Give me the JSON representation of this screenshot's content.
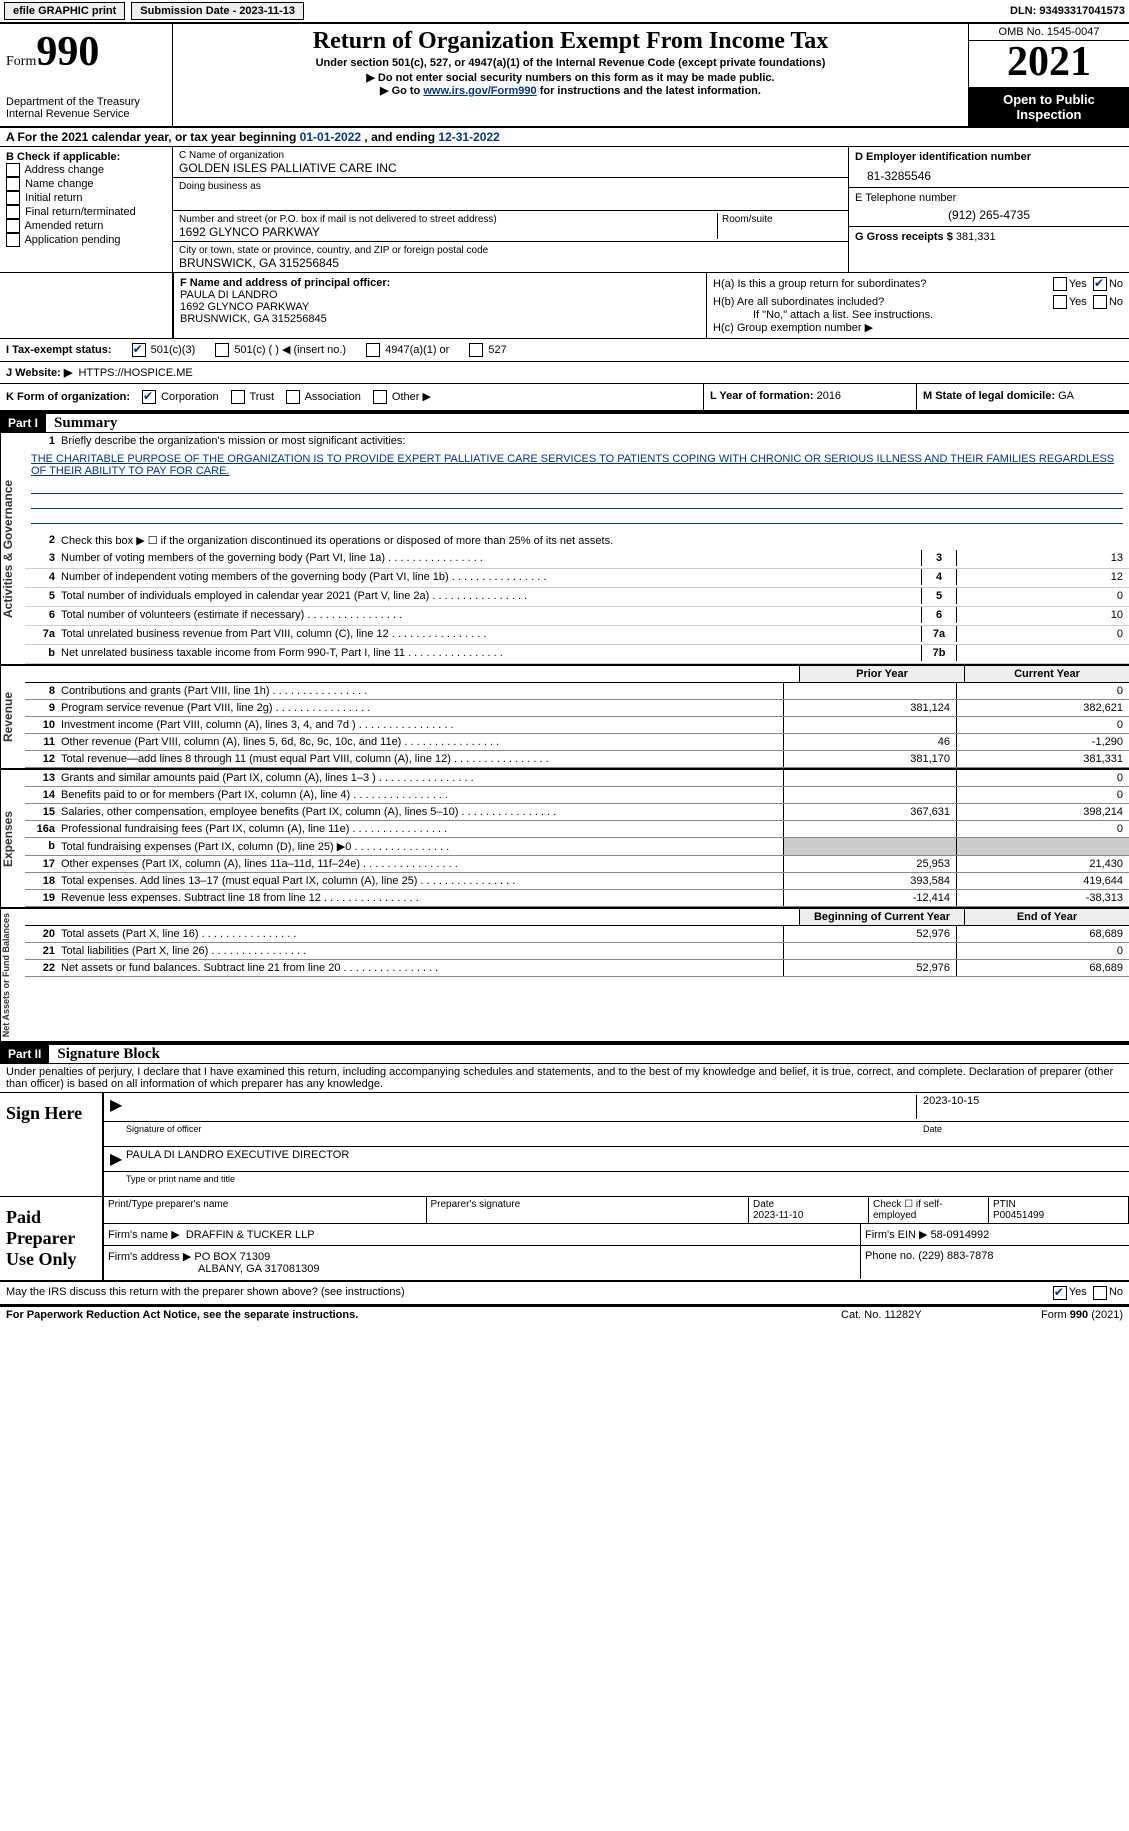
{
  "topbar": {
    "efile": "efile GRAPHIC print",
    "submission_label": "Submission Date - 2023-11-13",
    "dln_label": "DLN: 93493317041573"
  },
  "header": {
    "form_label": "Form",
    "form_number": "990",
    "dept": "Department of the Treasury",
    "irs": "Internal Revenue Service",
    "title": "Return of Organization Exempt From Income Tax",
    "subtitle": "Under section 501(c), 527, or 4947(a)(1) of the Internal Revenue Code (except private foundations)",
    "note1": "▶ Do not enter social security numbers on this form as it may be made public.",
    "note2_pre": "▶ Go to ",
    "note2_link": "www.irs.gov/Form990",
    "note2_post": " for instructions and the latest information.",
    "omb": "OMB No. 1545-0047",
    "year": "2021",
    "inspect": "Open to Public Inspection"
  },
  "period": {
    "label_a": "A For the 2021 calendar year, or tax year beginning ",
    "begin": "01-01-2022",
    "mid": " , and ending ",
    "end": "12-31-2022"
  },
  "section_b": {
    "label": "B Check if applicable:",
    "opts": [
      "Address change",
      "Name change",
      "Initial return",
      "Final return/terminated",
      "Amended return",
      "Application pending"
    ]
  },
  "section_c": {
    "name_label": "C Name of organization",
    "name": "GOLDEN ISLES PALLIATIVE CARE INC",
    "dba_label": "Doing business as",
    "addr_label": "Number and street (or P.O. box if mail is not delivered to street address)",
    "room_label": "Room/suite",
    "addr": "1692 GLYNCO PARKWAY",
    "city_label": "City or town, state or province, country, and ZIP or foreign postal code",
    "city": "BRUNSWICK, GA  315256845"
  },
  "section_d": {
    "label": "D Employer identification number",
    "value": "81-3285546"
  },
  "section_e": {
    "label": "E Telephone number",
    "value": "(912) 265-4735"
  },
  "section_g": {
    "label": "G Gross receipts $",
    "value": "381,331"
  },
  "section_f": {
    "label": "F Name and address of principal officer:",
    "name": "PAULA DI LANDRO",
    "addr": "1692 GLYNCO PARKWAY",
    "city": "BRUSNWICK, GA  315256845"
  },
  "section_h": {
    "ha_label": "H(a)  Is this a group return for subordinates?",
    "hb_label": "H(b)  Are all subordinates included?",
    "hb_note": "If \"No,\" attach a list. See instructions.",
    "hc_label": "H(c)  Group exemption number ▶",
    "yes": "Yes",
    "no": "No"
  },
  "section_i": {
    "label": "I  Tax-exempt status:",
    "opts": [
      "501(c)(3)",
      "501(c) (  ) ◀ (insert no.)",
      "4947(a)(1) or",
      "527"
    ]
  },
  "section_j": {
    "label": "J  Website: ▶",
    "value": "HTTPS://HOSPICE.ME"
  },
  "section_k": {
    "label": "K Form of organization:",
    "opts": [
      "Corporation",
      "Trust",
      "Association",
      "Other ▶"
    ]
  },
  "section_l": {
    "label": "L Year of formation:",
    "value": "2016"
  },
  "section_m": {
    "label": "M State of legal domicile:",
    "value": "GA"
  },
  "part1": {
    "header": "Part I",
    "title": "Summary",
    "line1_label": "Briefly describe the organization's mission or most significant activities:",
    "mission": "THE CHARITABLE PURPOSE OF THE ORGANIZATION IS TO PROVIDE EXPERT PALLIATIVE CARE SERVICES TO PATIENTS COPING WITH CHRONIC OR SERIOUS ILLNESS AND THEIR FAMILIES REGARDLESS OF THEIR ABILITY TO PAY FOR CARE.",
    "line2": "Check this box ▶ ☐ if the organization discontinued its operations or disposed of more than 25% of its net assets.",
    "lines_numbox": [
      {
        "n": "3",
        "t": "Number of voting members of the governing body (Part VI, line 1a)",
        "box": "3",
        "v": "13"
      },
      {
        "n": "4",
        "t": "Number of independent voting members of the governing body (Part VI, line 1b)",
        "box": "4",
        "v": "12"
      },
      {
        "n": "5",
        "t": "Total number of individuals employed in calendar year 2021 (Part V, line 2a)",
        "box": "5",
        "v": "0"
      },
      {
        "n": "6",
        "t": "Total number of volunteers (estimate if necessary)",
        "box": "6",
        "v": "10"
      },
      {
        "n": "7a",
        "t": "Total unrelated business revenue from Part VIII, column (C), line 12",
        "box": "7a",
        "v": "0"
      },
      {
        "n": "b",
        "t": "Net unrelated business taxable income from Form 990-T, Part I, line 11",
        "box": "7b",
        "v": ""
      }
    ],
    "col_prior": "Prior Year",
    "col_current": "Current Year",
    "revenue_lines": [
      {
        "n": "8",
        "t": "Contributions and grants (Part VIII, line 1h)",
        "p": "",
        "c": "0"
      },
      {
        "n": "9",
        "t": "Program service revenue (Part VIII, line 2g)",
        "p": "381,124",
        "c": "382,621"
      },
      {
        "n": "10",
        "t": "Investment income (Part VIII, column (A), lines 3, 4, and 7d )",
        "p": "",
        "c": "0"
      },
      {
        "n": "11",
        "t": "Other revenue (Part VIII, column (A), lines 5, 6d, 8c, 9c, 10c, and 11e)",
        "p": "46",
        "c": "-1,290"
      },
      {
        "n": "12",
        "t": "Total revenue—add lines 8 through 11 (must equal Part VIII, column (A), line 12)",
        "p": "381,170",
        "c": "381,331"
      }
    ],
    "expense_lines": [
      {
        "n": "13",
        "t": "Grants and similar amounts paid (Part IX, column (A), lines 1–3 )",
        "p": "",
        "c": "0"
      },
      {
        "n": "14",
        "t": "Benefits paid to or for members (Part IX, column (A), line 4)",
        "p": "",
        "c": "0"
      },
      {
        "n": "15",
        "t": "Salaries, other compensation, employee benefits (Part IX, column (A), lines 5–10)",
        "p": "367,631",
        "c": "398,214"
      },
      {
        "n": "16a",
        "t": "Professional fundraising fees (Part IX, column (A), line 11e)",
        "p": "",
        "c": "0"
      },
      {
        "n": "b",
        "t": "Total fundraising expenses (Part IX, column (D), line 25) ▶0",
        "p": "grey",
        "c": "grey"
      },
      {
        "n": "17",
        "t": "Other expenses (Part IX, column (A), lines 11a–11d, 11f–24e)",
        "p": "25,953",
        "c": "21,430"
      },
      {
        "n": "18",
        "t": "Total expenses. Add lines 13–17 (must equal Part IX, column (A), line 25)",
        "p": "393,584",
        "c": "419,644"
      },
      {
        "n": "19",
        "t": "Revenue less expenses. Subtract line 18 from line 12",
        "p": "-12,414",
        "c": "-38,313"
      }
    ],
    "col_begin": "Beginning of Current Year",
    "col_end": "End of Year",
    "net_lines": [
      {
        "n": "20",
        "t": "Total assets (Part X, line 16)",
        "p": "52,976",
        "c": "68,689"
      },
      {
        "n": "21",
        "t": "Total liabilities (Part X, line 26)",
        "p": "",
        "c": "0"
      },
      {
        "n": "22",
        "t": "Net assets or fund balances. Subtract line 21 from line 20",
        "p": "52,976",
        "c": "68,689"
      }
    ],
    "vtab_activities": "Activities & Governance",
    "vtab_revenue": "Revenue",
    "vtab_expenses": "Expenses",
    "vtab_net": "Net Assets or Fund Balances"
  },
  "part2": {
    "header": "Part II",
    "title": "Signature Block",
    "penalty": "Under penalties of perjury, I declare that I have examined this return, including accompanying schedules and statements, and to the best of my knowledge and belief, it is true, correct, and complete. Declaration of preparer (other than officer) is based on all information of which preparer has any knowledge.",
    "sign_here": "Sign Here",
    "sig_officer": "Signature of officer",
    "sig_date": "2023-10-15",
    "date_label": "Date",
    "officer_name": "PAULA DI LANDRO  EXECUTIVE DIRECTOR",
    "type_name": "Type or print name and title",
    "paid_label": "Paid Preparer Use Only",
    "prep_name_label": "Print/Type preparer's name",
    "prep_sig_label": "Preparer's signature",
    "prep_date_label": "Date",
    "prep_date": "2023-11-10",
    "check_self": "Check ☐ if self-employed",
    "ptin_label": "PTIN",
    "ptin": "P00451499",
    "firm_name_label": "Firm's name    ▶",
    "firm_name": "DRAFFIN & TUCKER LLP",
    "firm_ein_label": "Firm's EIN ▶",
    "firm_ein": "58-0914992",
    "firm_addr_label": "Firm's address ▶",
    "firm_addr": "PO BOX 71309",
    "firm_city": "ALBANY, GA  317081309",
    "firm_phone_label": "Phone no.",
    "firm_phone": "(229) 883-7878",
    "discuss": "May the IRS discuss this return with the preparer shown above? (see instructions)"
  },
  "footer": {
    "notice": "For Paperwork Reduction Act Notice, see the separate instructions.",
    "cat": "Cat. No. 11282Y",
    "form": "Form 990 (2021)"
  }
}
